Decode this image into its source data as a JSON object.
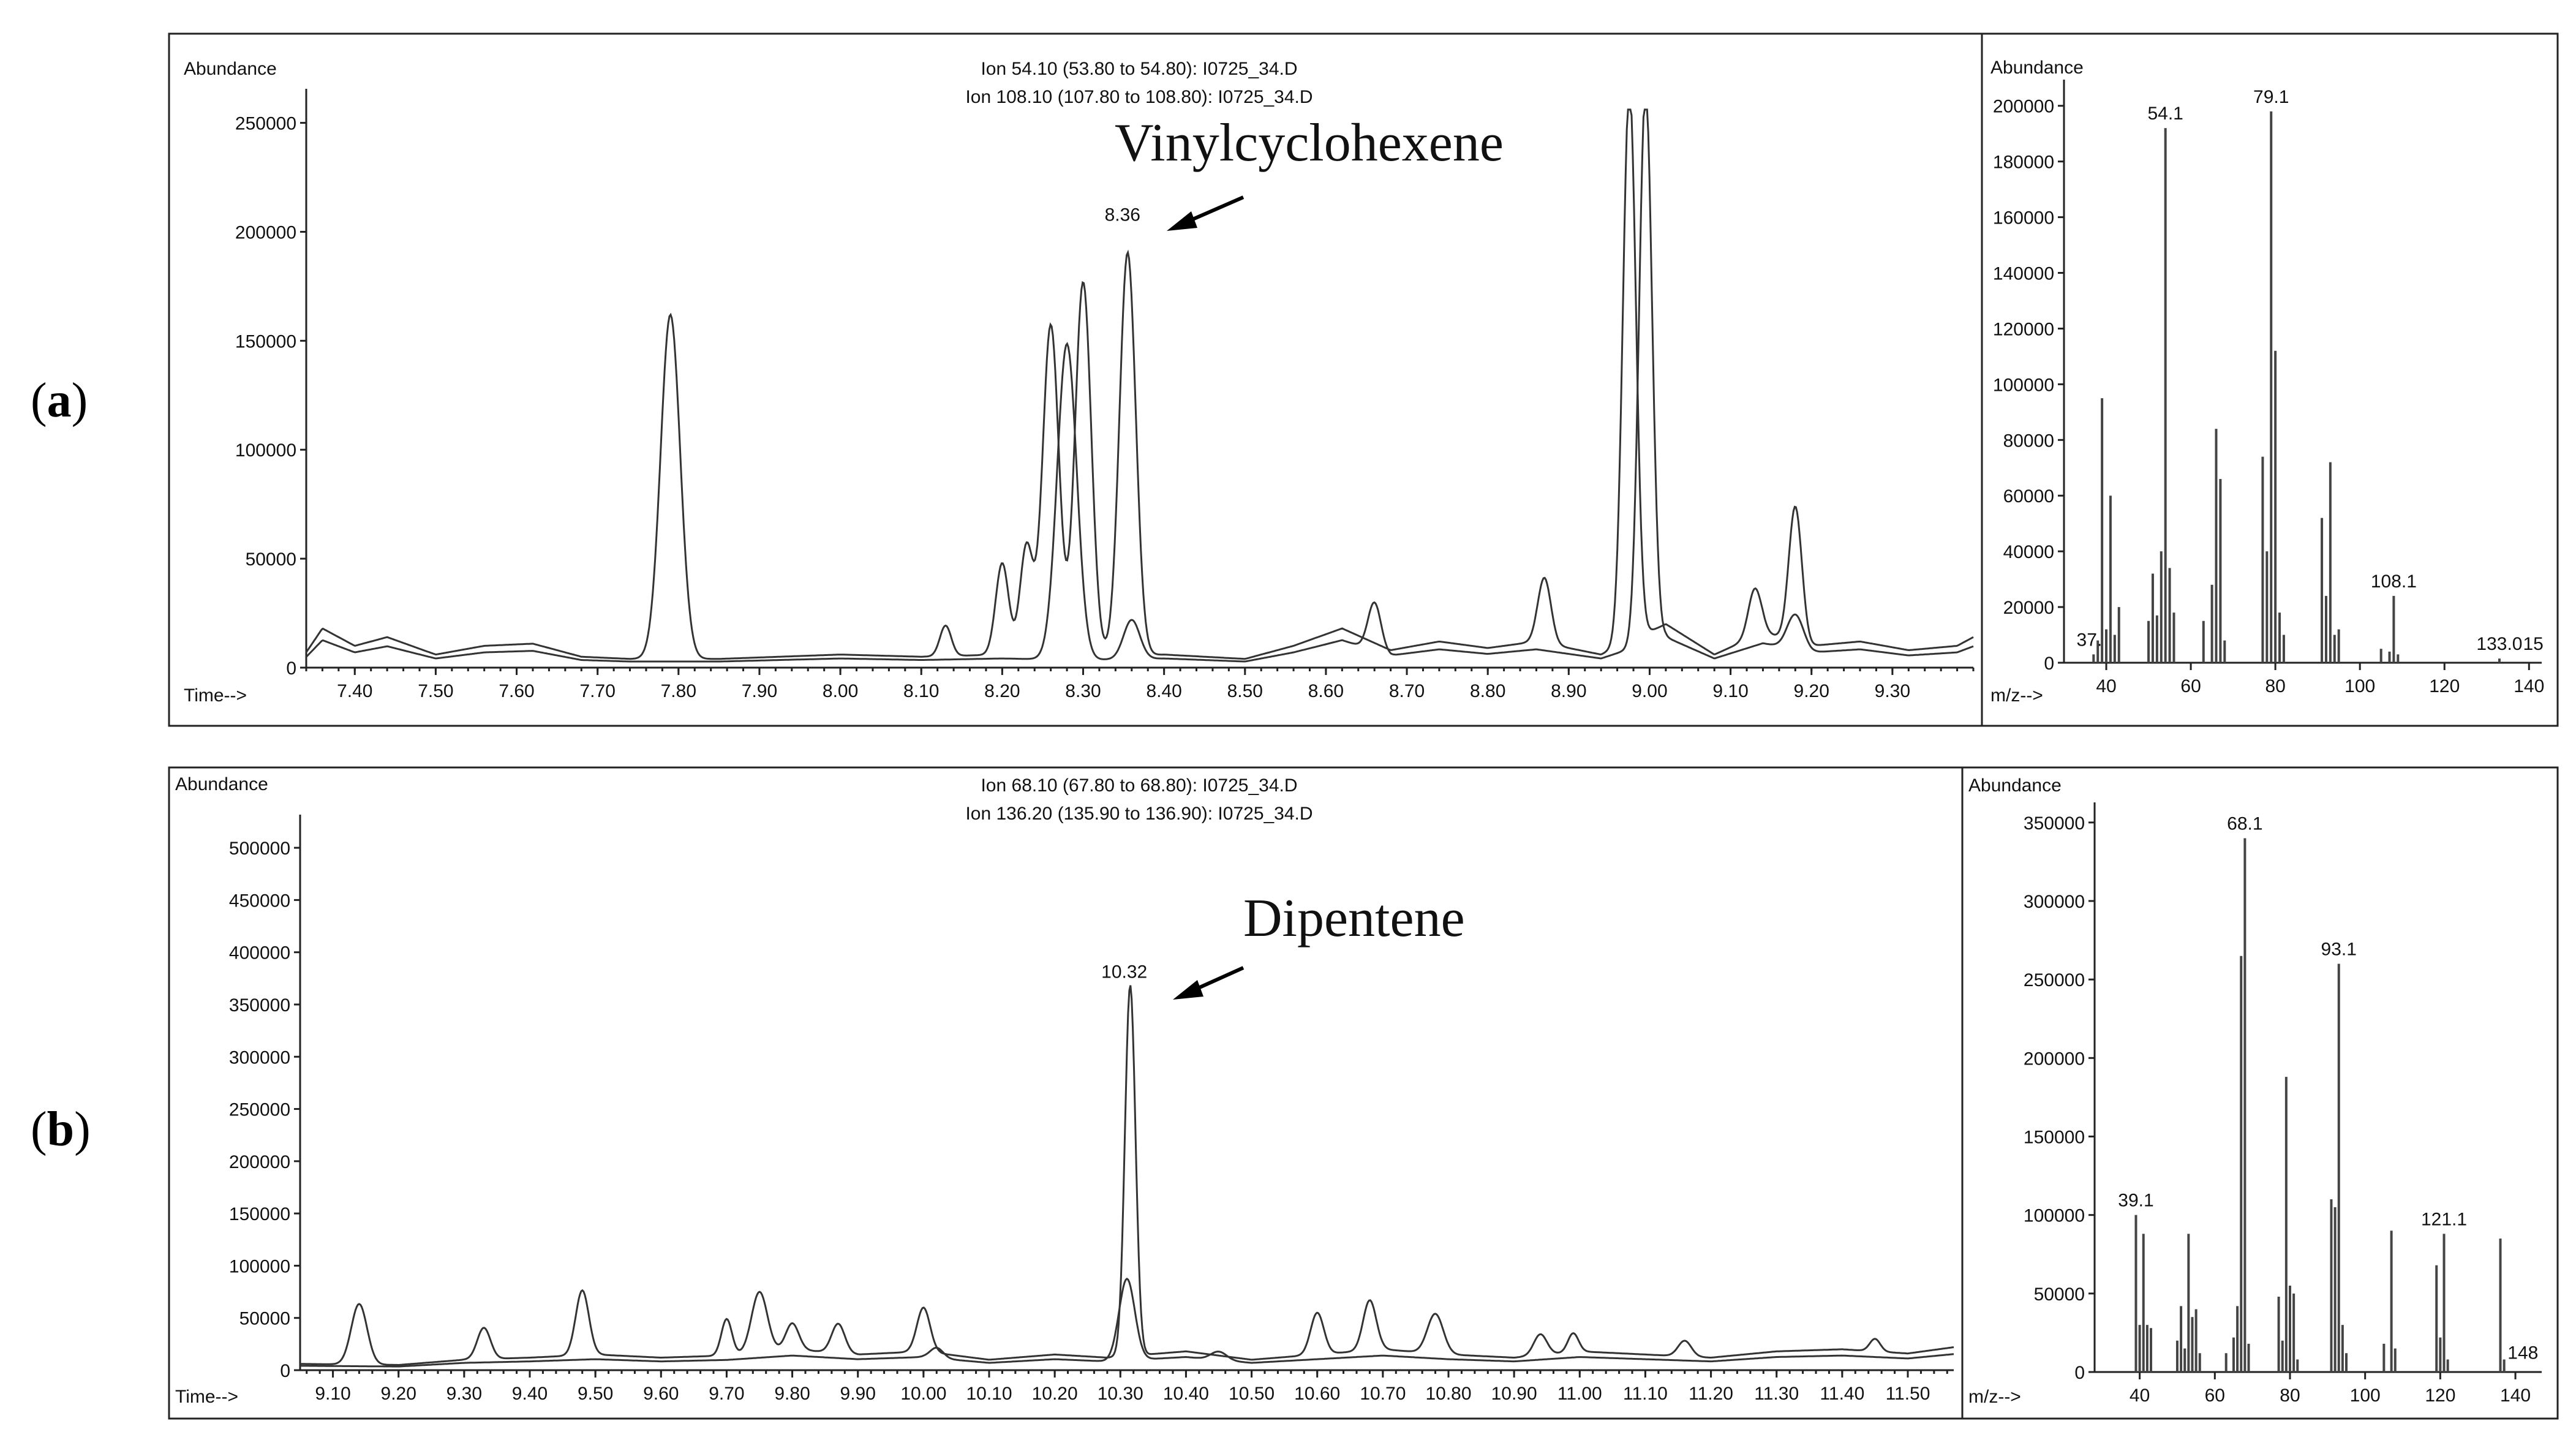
{
  "panels": [
    {
      "letter": "a",
      "annotation": "Vinylcyclohexene",
      "chromatogram": {
        "type": "line",
        "ylabel": "Abundance",
        "xlabel": "Time-->",
        "ion_lines": [
          "Ion  54.10 (53.80 to 54.80): I0725_34.D",
          "Ion 108.10 (107.80 to 108.80): I0725_34.D"
        ],
        "xlim": [
          7.34,
          9.4
        ],
        "ylim": [
          0,
          260000
        ],
        "x_ticks": [
          7.4,
          7.5,
          7.6,
          7.7,
          7.8,
          7.9,
          8.0,
          8.1,
          8.2,
          8.3,
          8.4,
          8.5,
          8.6,
          8.7,
          8.8,
          8.9,
          9.0,
          9.1,
          9.2,
          9.3
        ],
        "x_tick_labels": [
          "7.40",
          "7.50",
          "7.60",
          "7.70",
          "7.80",
          "7.90",
          "8.00",
          "8.10",
          "8.20",
          "8.30",
          "8.40",
          "8.50",
          "8.60",
          "8.70",
          "8.80",
          "8.90",
          "9.00",
          "9.10",
          "9.20",
          "9.30"
        ],
        "y_ticks": [
          0,
          50000,
          100000,
          150000,
          200000,
          250000
        ],
        "y_tick_labels": [
          "0",
          "50000",
          "100000",
          "150000",
          "200000",
          "250000"
        ],
        "peak_label": "8.36",
        "peak_label_x": 8.36,
        "peak_label_y": 200000,
        "baseline": [
          [
            7.34,
            7000
          ],
          [
            7.36,
            18000
          ],
          [
            7.4,
            10000
          ],
          [
            7.44,
            14000
          ],
          [
            7.5,
            6000
          ],
          [
            7.56,
            10000
          ],
          [
            7.62,
            11000
          ],
          [
            7.68,
            5000
          ],
          [
            7.74,
            4000
          ],
          [
            7.85,
            4000
          ],
          [
            8.0,
            6000
          ],
          [
            8.1,
            5000
          ],
          [
            8.2,
            6000
          ],
          [
            8.3,
            5000
          ],
          [
            8.4,
            6000
          ],
          [
            8.5,
            4000
          ],
          [
            8.56,
            10000
          ],
          [
            8.62,
            18000
          ],
          [
            8.68,
            8000
          ],
          [
            8.74,
            12000
          ],
          [
            8.8,
            9000
          ],
          [
            8.86,
            12000
          ],
          [
            8.94,
            6000
          ],
          [
            9.02,
            20000
          ],
          [
            9.08,
            6000
          ],
          [
            9.14,
            16000
          ],
          [
            9.2,
            10000
          ],
          [
            9.26,
            12000
          ],
          [
            9.32,
            8000
          ],
          [
            9.38,
            10000
          ],
          [
            9.4,
            14000
          ]
        ],
        "series": [
          {
            "name": "",
            "peaks": [
              [
                7.79,
                158000,
                0.012
              ],
              [
                8.2,
                42000,
                0.008
              ],
              [
                8.23,
                50000,
                0.008
              ],
              [
                8.26,
                152000,
                0.01
              ],
              [
                8.3,
                172000,
                0.01
              ],
              [
                8.355,
                185000,
                0.01
              ],
              [
                8.13,
                14000,
                0.007
              ],
              [
                8.87,
                30000,
                0.008
              ],
              [
                8.975,
                255000,
                0.008
              ],
              [
                9.13,
                22000,
                0.008
              ],
              [
                9.18,
                62000,
                0.008
              ]
            ]
          },
          {
            "name": "",
            "peaks": [
              [
                8.28,
                145000,
                0.012
              ],
              [
                8.36,
                18000,
                0.01
              ],
              [
                8.66,
                22000,
                0.008
              ],
              [
                8.995,
                255000,
                0.008
              ],
              [
                9.18,
                16000,
                0.01
              ]
            ]
          }
        ]
      },
      "spectrum": {
        "type": "bar",
        "ylabel": "Abundance",
        "xlabel": "m/z-->",
        "xlim": [
          30,
          143
        ],
        "ylim": [
          0,
          205000
        ],
        "x_ticks": [
          40,
          60,
          80,
          100,
          120,
          140
        ],
        "x_tick_labels": [
          "40",
          "60",
          "80",
          "100",
          "120",
          "140"
        ],
        "y_ticks": [
          0,
          20000,
          40000,
          60000,
          80000,
          100000,
          120000,
          140000,
          160000,
          180000,
          200000
        ],
        "y_tick_labels": [
          "0",
          "20000",
          "40000",
          "60000",
          "80000",
          "100000",
          "120000",
          "140000",
          "160000",
          "180000",
          "200000"
        ],
        "bars": [
          [
            37,
            3000
          ],
          [
            38,
            8000
          ],
          [
            39,
            95000
          ],
          [
            40,
            12000
          ],
          [
            41,
            60000
          ],
          [
            42,
            10000
          ],
          [
            43,
            20000
          ],
          [
            50,
            15000
          ],
          [
            51,
            32000
          ],
          [
            52,
            17000
          ],
          [
            53,
            40000
          ],
          [
            54,
            192000
          ],
          [
            55,
            34000
          ],
          [
            56,
            18000
          ],
          [
            63,
            15000
          ],
          [
            65,
            28000
          ],
          [
            66,
            84000
          ],
          [
            67,
            66000
          ],
          [
            68,
            8000
          ],
          [
            77,
            74000
          ],
          [
            78,
            40000
          ],
          [
            79,
            198000
          ],
          [
            80,
            112000
          ],
          [
            81,
            18000
          ],
          [
            82,
            10000
          ],
          [
            91,
            52000
          ],
          [
            92,
            24000
          ],
          [
            93,
            72000
          ],
          [
            94,
            10000
          ],
          [
            95,
            12000
          ],
          [
            105,
            5000
          ],
          [
            107,
            4000
          ],
          [
            108,
            24000
          ],
          [
            109,
            3000
          ],
          [
            133,
            1500
          ]
        ],
        "peak_labels": [
          {
            "text": "54.1",
            "x": 54,
            "y": 192000
          },
          {
            "text": "79.1",
            "x": 79,
            "y": 198000
          },
          {
            "text": "108.1",
            "x": 108,
            "y": 24000
          },
          {
            "text": "37.",
            "x": 36,
            "y": 3000
          },
          {
            "text": "133.0",
            "x": 133,
            "y": 1500
          },
          {
            "text": "15",
            "x": 141,
            "y": 1500
          }
        ]
      }
    },
    {
      "letter": "b",
      "annotation": "Dipentene",
      "chromatogram": {
        "type": "line",
        "ylabel": "Abundance",
        "xlabel": "Time-->",
        "ion_lines": [
          "Ion  68.10 (67.80 to 68.80): I0725_34.D",
          "Ion 136.20 (135.90 to 136.90): I0725_34.D"
        ],
        "xlim": [
          9.05,
          11.57
        ],
        "ylim": [
          0,
          520000
        ],
        "x_ticks": [
          9.1,
          9.2,
          9.3,
          9.4,
          9.5,
          9.6,
          9.7,
          9.8,
          9.9,
          10.0,
          10.1,
          10.2,
          10.3,
          10.4,
          10.5,
          10.6,
          10.7,
          10.8,
          10.9,
          11.0,
          11.1,
          11.2,
          11.3,
          11.4,
          11.5
        ],
        "x_tick_labels": [
          "9.10",
          "9.20",
          "9.30",
          "9.40",
          "9.50",
          "9.60",
          "9.70",
          "9.80",
          "9.90",
          "10.00",
          "10.10",
          "10.20",
          "10.30",
          "10.40",
          "10.50",
          "10.60",
          "10.70",
          "10.80",
          "10.90",
          "11.00",
          "11.10",
          "11.20",
          "11.30",
          "11.40",
          "11.50"
        ],
        "y_ticks": [
          0,
          50000,
          100000,
          150000,
          200000,
          250000,
          300000,
          350000,
          400000,
          450000,
          500000
        ],
        "y_tick_labels": [
          "0",
          "50000",
          "100000",
          "150000",
          "200000",
          "250000",
          "300000",
          "350000",
          "400000",
          "450000",
          "500000"
        ],
        "peak_label": "10.32",
        "peak_label_x": 10.32,
        "peak_label_y": 365000,
        "baseline": [
          [
            9.05,
            6000
          ],
          [
            9.2,
            5000
          ],
          [
            9.3,
            10000
          ],
          [
            9.4,
            12000
          ],
          [
            9.5,
            15000
          ],
          [
            9.6,
            12000
          ],
          [
            9.7,
            14000
          ],
          [
            9.8,
            20000
          ],
          [
            9.9,
            15000
          ],
          [
            10.0,
            18000
          ],
          [
            10.1,
            10000
          ],
          [
            10.2,
            15000
          ],
          [
            10.28,
            12000
          ],
          [
            10.4,
            18000
          ],
          [
            10.5,
            10000
          ],
          [
            10.6,
            15000
          ],
          [
            10.7,
            20000
          ],
          [
            10.8,
            15000
          ],
          [
            10.9,
            12000
          ],
          [
            11.0,
            18000
          ],
          [
            11.1,
            15000
          ],
          [
            11.2,
            12000
          ],
          [
            11.3,
            18000
          ],
          [
            11.4,
            20000
          ],
          [
            11.5,
            16000
          ],
          [
            11.57,
            22000
          ]
        ],
        "series": [
          {
            "name": "",
            "peaks": [
              [
                9.14,
                58000,
                0.012
              ],
              [
                9.33,
                30000,
                0.01
              ],
              [
                9.48,
                62000,
                0.01
              ],
              [
                9.7,
                35000,
                0.008
              ],
              [
                9.75,
                58000,
                0.012
              ],
              [
                9.8,
                25000,
                0.01
              ],
              [
                9.87,
                28000,
                0.01
              ],
              [
                10.0,
                42000,
                0.01
              ],
              [
                10.315,
                355000,
                0.008
              ],
              [
                10.6,
                40000,
                0.01
              ],
              [
                10.68,
                48000,
                0.01
              ],
              [
                10.78,
                38000,
                0.012
              ],
              [
                10.94,
                20000,
                0.01
              ],
              [
                10.99,
                18000,
                0.008
              ],
              [
                11.16,
                15000,
                0.01
              ],
              [
                11.45,
                12000,
                0.008
              ]
            ]
          },
          {
            "name": "",
            "peaks": [
              [
                10.31,
                78000,
                0.012
              ],
              [
                10.02,
                10000,
                0.01
              ],
              [
                10.45,
                8000,
                0.012
              ]
            ]
          }
        ]
      },
      "spectrum": {
        "type": "bar",
        "ylabel": "Abundance",
        "xlabel": "m/z-->",
        "xlim": [
          28,
          147
        ],
        "ylim": [
          0,
          355000
        ],
        "x_ticks": [
          40,
          60,
          80,
          100,
          120,
          140
        ],
        "x_tick_labels": [
          "40",
          "60",
          "80",
          "100",
          "120",
          "140"
        ],
        "y_ticks": [
          0,
          50000,
          100000,
          150000,
          200000,
          250000,
          300000,
          350000
        ],
        "y_tick_labels": [
          "0",
          "50000",
          "100000",
          "150000",
          "200000",
          "250000",
          "300000",
          "350000"
        ],
        "bars": [
          [
            39,
            100000
          ],
          [
            40,
            30000
          ],
          [
            41,
            88000
          ],
          [
            42,
            30000
          ],
          [
            43,
            28000
          ],
          [
            50,
            20000
          ],
          [
            51,
            42000
          ],
          [
            52,
            15000
          ],
          [
            53,
            88000
          ],
          [
            54,
            35000
          ],
          [
            55,
            40000
          ],
          [
            56,
            12000
          ],
          [
            63,
            12000
          ],
          [
            65,
            22000
          ],
          [
            66,
            42000
          ],
          [
            67,
            265000
          ],
          [
            68,
            340000
          ],
          [
            69,
            18000
          ],
          [
            77,
            48000
          ],
          [
            78,
            20000
          ],
          [
            79,
            188000
          ],
          [
            80,
            55000
          ],
          [
            81,
            50000
          ],
          [
            82,
            8000
          ],
          [
            91,
            110000
          ],
          [
            92,
            105000
          ],
          [
            93,
            260000
          ],
          [
            94,
            30000
          ],
          [
            95,
            12000
          ],
          [
            105,
            18000
          ],
          [
            107,
            90000
          ],
          [
            108,
            15000
          ],
          [
            119,
            68000
          ],
          [
            120,
            22000
          ],
          [
            121,
            88000
          ],
          [
            122,
            8000
          ],
          [
            136,
            85000
          ],
          [
            137,
            8000
          ],
          [
            148,
            3000
          ]
        ],
        "peak_labels": [
          {
            "text": "68.1",
            "x": 68,
            "y": 340000
          },
          {
            "text": "93.1",
            "x": 93,
            "y": 260000
          },
          {
            "text": "39.1",
            "x": 39,
            "y": 100000
          },
          {
            "text": "121.1",
            "x": 121,
            "y": 88000
          },
          {
            "text": "148",
            "x": 142,
            "y": 3000
          }
        ]
      }
    }
  ]
}
